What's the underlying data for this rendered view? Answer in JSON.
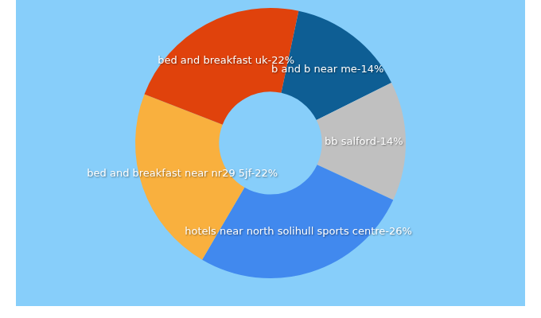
{
  "chart_data": {
    "type": "doughnut",
    "categories": [
      "b and b near me",
      "bb salford",
      "hotels near north solihull sports centre",
      "bed and breakfast near nr29 5jf",
      "bed and breakfast uk"
    ],
    "values": [
      14,
      14,
      26,
      22,
      22
    ],
    "value_labels": [
      "b and b near me-14%",
      "bb salford-14%",
      "hotels near north solihull sports centre-26%",
      "bed and breakfast near nr29 5jf-22%",
      "bed and breakfast uk-22%"
    ],
    "colors": [
      "#0e5e94",
      "#c0c0c0",
      "#4189ee",
      "#f9b03e",
      "#e0420c"
    ],
    "data_labels": true
  }
}
